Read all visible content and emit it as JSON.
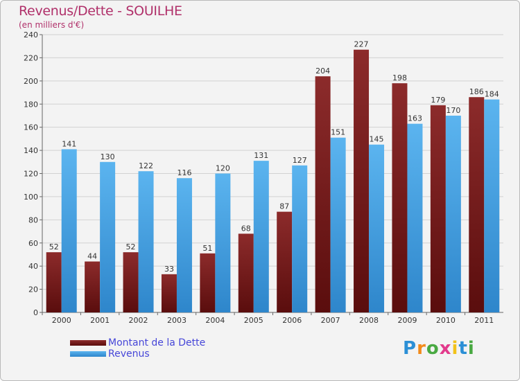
{
  "header": {
    "title": "Revenus/Dette - SOUILHE",
    "subtitle": "(en milliers d'€)"
  },
  "brand": {
    "letters": [
      "P",
      "r",
      "o",
      "x",
      "i",
      "t",
      "i"
    ],
    "colors": [
      "#2b8fd6",
      "#f28a1a",
      "#49a942",
      "#e23a8c",
      "#f2c21a",
      "#2b8fd6",
      "#49a942"
    ]
  },
  "colors": {
    "debt_top": "#8c2b2b",
    "debt_bottom": "#5a0d0d",
    "revenue_top": "#5bb4ef",
    "revenue_bottom": "#2e86cb",
    "grid": "#d2d2d2",
    "axis_text": "#333333"
  },
  "chart_data": {
    "type": "bar",
    "title": "Revenus/Dette - SOUILHE",
    "subtitle": "(en milliers d'€)",
    "categories": [
      "2000",
      "2001",
      "2002",
      "2003",
      "2004",
      "2005",
      "2006",
      "2007",
      "2008",
      "2009",
      "2010",
      "2011"
    ],
    "series": [
      {
        "name": "Montant de la Dette",
        "values": [
          52,
          44,
          52,
          33,
          51,
          68,
          87,
          204,
          227,
          198,
          179,
          186
        ]
      },
      {
        "name": "Revenus",
        "values": [
          141,
          130,
          122,
          116,
          120,
          131,
          127,
          151,
          145,
          163,
          170,
          184
        ]
      }
    ],
    "ylim": [
      0,
      240
    ],
    "yticks": [
      0,
      20,
      40,
      60,
      80,
      100,
      120,
      140,
      160,
      180,
      200,
      220,
      240
    ],
    "grid": true,
    "legend_position": "bottom-left"
  }
}
